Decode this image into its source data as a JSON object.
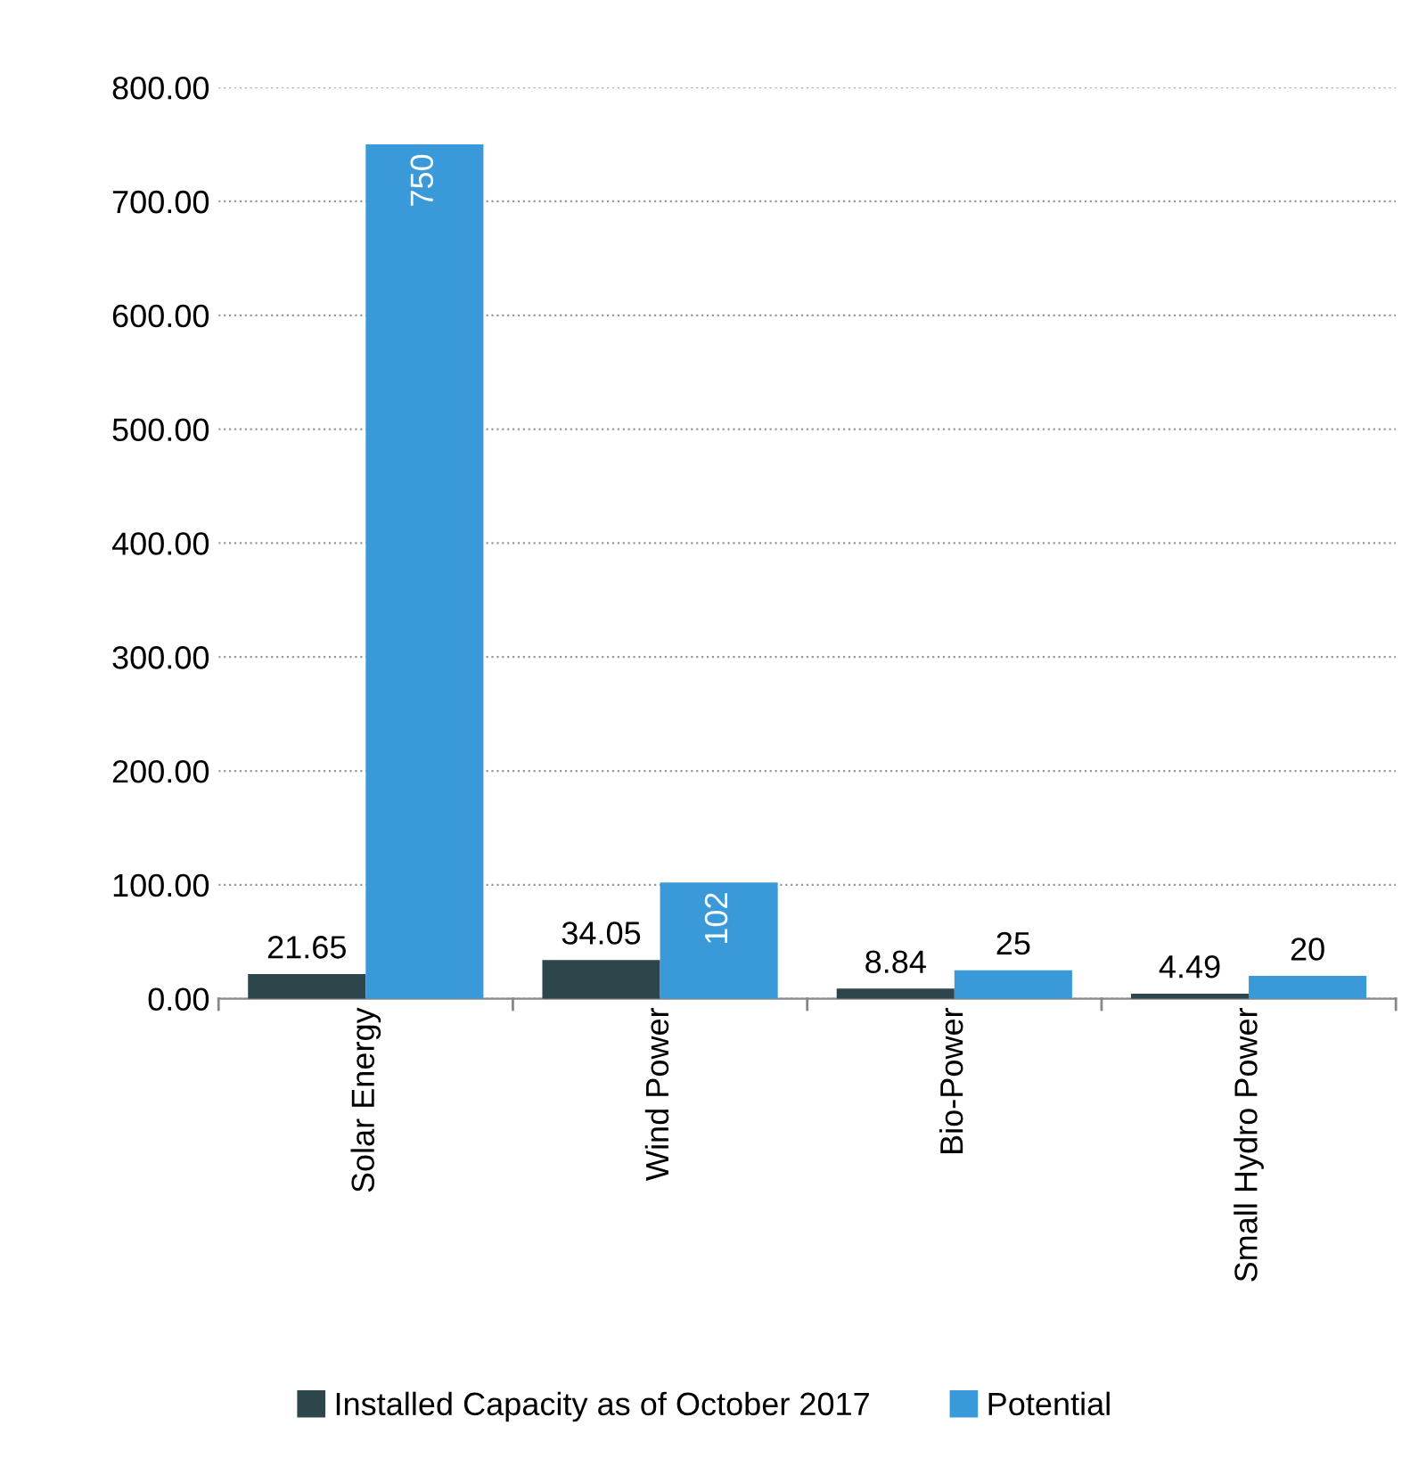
{
  "chart_data": {
    "type": "bar",
    "categories": [
      "Solar Energy",
      "Wind Power",
      "Bio-Power",
      "Small Hydro Power"
    ],
    "series": [
      {
        "name": "Installed Capacity as of October 2017",
        "color": "#2d464c",
        "values": [
          21.65,
          34.05,
          8.84,
          4.49
        ]
      },
      {
        "name": "Potential",
        "color": "#3a9ad9",
        "values": [
          750,
          102,
          25,
          20
        ]
      }
    ],
    "ylim": [
      0,
      800
    ],
    "yticks": [
      {
        "value": 0,
        "label": "0.00"
      },
      {
        "value": 100,
        "label": "100.00"
      },
      {
        "value": 200,
        "label": "200.00"
      },
      {
        "value": 300,
        "label": "300.00"
      },
      {
        "value": 400,
        "label": "400.00"
      },
      {
        "value": 500,
        "label": "500.00"
      },
      {
        "value": 600,
        "label": "600.00"
      },
      {
        "value": 700,
        "label": "700.00"
      },
      {
        "value": 800,
        "label": "800.00"
      }
    ],
    "grid": "y",
    "legend": "bottom",
    "data_labels": true
  }
}
